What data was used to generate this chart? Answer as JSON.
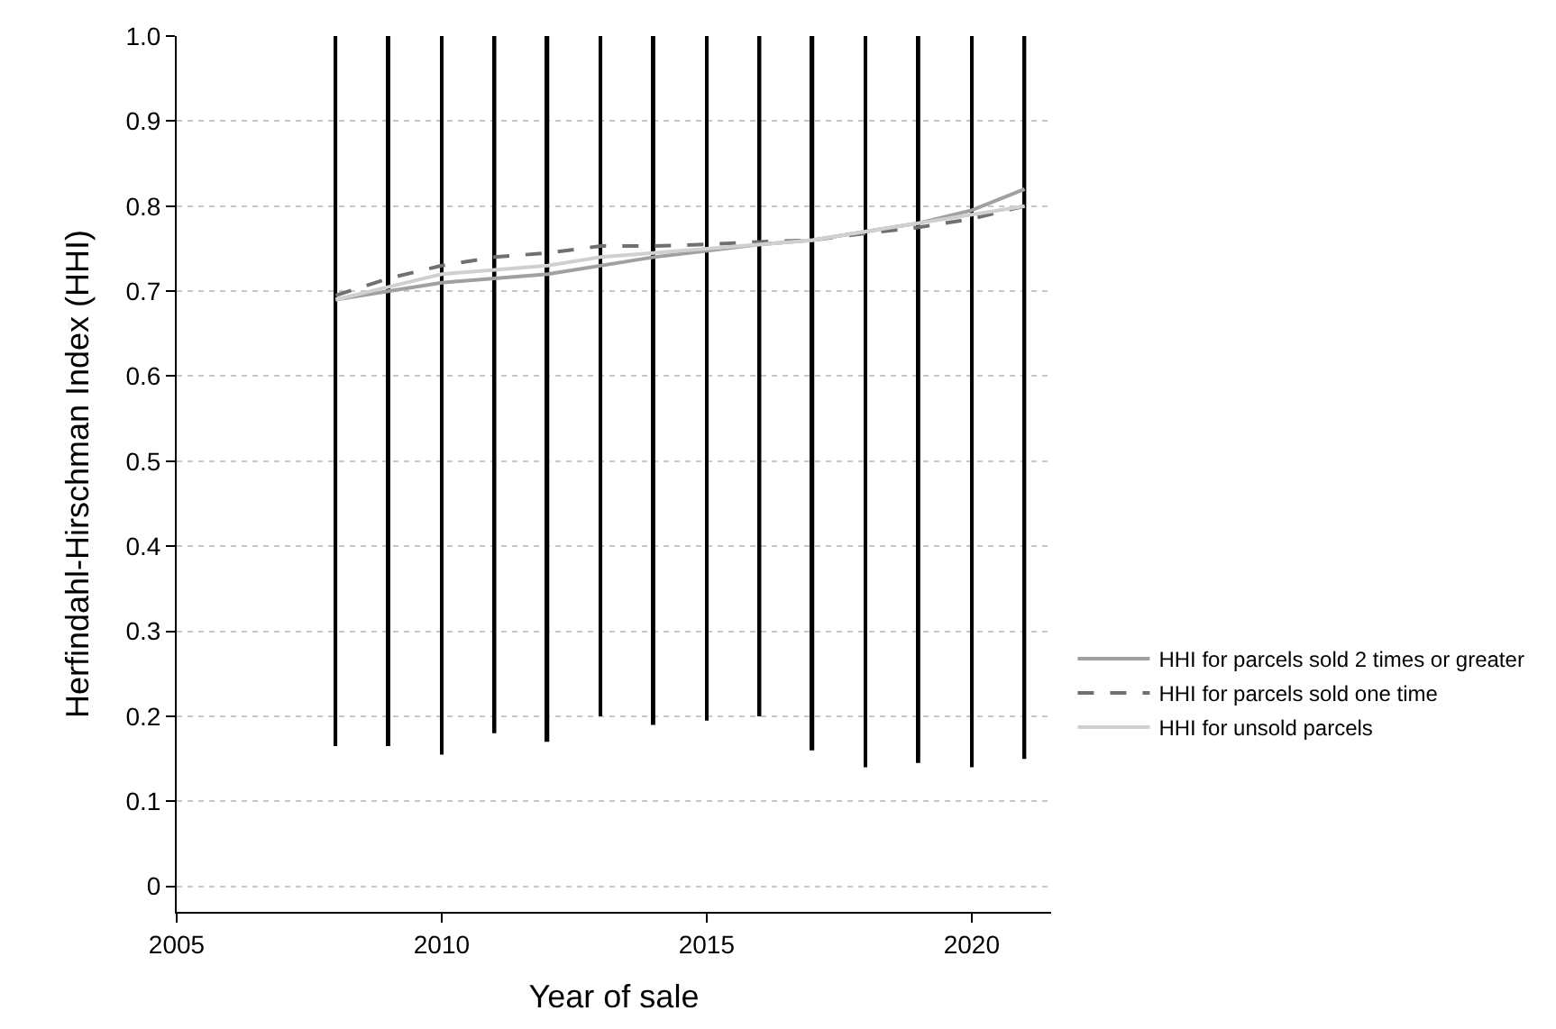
{
  "chart_data": {
    "type": "line",
    "xlabel": "Year of sale",
    "ylabel": "Herfindahl-Hirschman Index (HHI)",
    "xlim": [
      2005,
      2021.5
    ],
    "xticks": [
      2005,
      2010,
      2015,
      2020
    ],
    "ylim": [
      -0.03,
      1.0
    ],
    "yticks": [
      {
        "value": 0,
        "label": "0"
      },
      0.1,
      0.2,
      0.3,
      0.4,
      0.5,
      0.6,
      0.7,
      0.8,
      0.9,
      {
        "value": 1,
        "label": "1.0"
      }
    ],
    "grid": "y",
    "legend": "right",
    "marker": "none",
    "series": [
      {
        "type": "bar",
        "color": "#000000",
        "x": [
          2008,
          2009,
          2010,
          2011,
          2012,
          2013,
          2014,
          2015,
          2016,
          2017,
          2018,
          2019,
          2020,
          2021
        ],
        "base": [
          0.165,
          0.165,
          0.155,
          0.18,
          0.17,
          0.2,
          0.19,
          0.195,
          0.2,
          0.16,
          0.14,
          0.145,
          0.14,
          0.15
        ],
        "values": [
          0.835,
          0.835,
          0.845,
          0.82,
          0.83,
          0.8,
          0.81,
          0.805,
          0.8,
          0.84,
          0.86,
          0.855,
          0.86,
          0.85
        ]
      },
      {
        "name": "HHI for parcels sold 2 times or greater",
        "color": "#a0a0a0",
        "line_style": "solid",
        "x": [
          2008,
          2010,
          2012,
          2014,
          2016,
          2017,
          2018,
          2019,
          2020,
          2021
        ],
        "values": [
          0.69,
          0.71,
          0.72,
          0.74,
          0.755,
          0.76,
          0.77,
          0.78,
          0.795,
          0.82
        ]
      },
      {
        "name": "HHI for parcels sold one time",
        "color": "#707070",
        "line_style": "dashed",
        "x": [
          2008,
          2009,
          2010,
          2011,
          2012,
          2013,
          2014,
          2015,
          2016,
          2017,
          2018,
          2019,
          2020,
          2021
        ],
        "values": [
          0.695,
          0.715,
          0.73,
          0.74,
          0.745,
          0.753,
          0.753,
          0.755,
          0.758,
          0.76,
          0.768,
          0.775,
          0.785,
          0.8
        ]
      },
      {
        "name": "HHI for unsold parcels",
        "color": "#d0d0d0",
        "line_style": "solid",
        "x": [
          2008,
          2009,
          2010,
          2011,
          2012,
          2013,
          2014,
          2015,
          2016,
          2017,
          2018,
          2019,
          2020,
          2021
        ],
        "values": [
          0.69,
          0.705,
          0.72,
          0.725,
          0.73,
          0.74,
          0.745,
          0.75,
          0.755,
          0.76,
          0.77,
          0.78,
          0.79,
          0.8
        ]
      }
    ]
  }
}
